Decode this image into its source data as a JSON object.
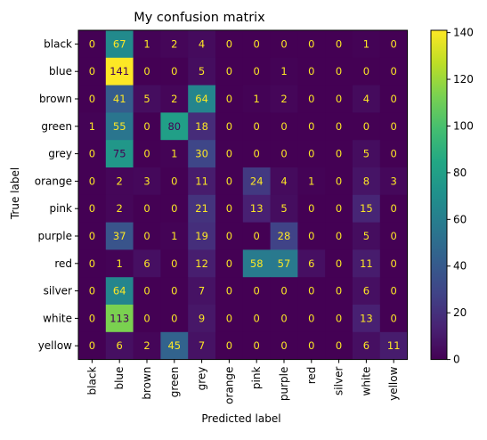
{
  "chart_data": {
    "type": "heatmap",
    "title": "My confusion matrix",
    "xlabel": "Predicted label",
    "ylabel": "True label",
    "labels": [
      "black",
      "blue",
      "brown",
      "green",
      "grey",
      "orange",
      "pink",
      "purple",
      "red",
      "silver",
      "white",
      "yellow"
    ],
    "matrix": [
      [
        0,
        67,
        1,
        2,
        4,
        0,
        0,
        0,
        0,
        0,
        1,
        0
      ],
      [
        0,
        141,
        0,
        0,
        5,
        0,
        0,
        1,
        0,
        0,
        0,
        0
      ],
      [
        0,
        41,
        5,
        2,
        64,
        0,
        1,
        2,
        0,
        0,
        4,
        0
      ],
      [
        1,
        55,
        0,
        80,
        18,
        0,
        0,
        0,
        0,
        0,
        0,
        0
      ],
      [
        0,
        75,
        0,
        1,
        30,
        0,
        0,
        0,
        0,
        0,
        5,
        0
      ],
      [
        0,
        2,
        3,
        0,
        11,
        0,
        24,
        4,
        1,
        0,
        8,
        3
      ],
      [
        0,
        2,
        0,
        0,
        21,
        0,
        13,
        5,
        0,
        0,
        15,
        0
      ],
      [
        0,
        37,
        0,
        1,
        19,
        0,
        0,
        28,
        0,
        0,
        5,
        0
      ],
      [
        0,
        1,
        6,
        0,
        12,
        0,
        58,
        57,
        6,
        0,
        11,
        0
      ],
      [
        0,
        64,
        0,
        0,
        7,
        0,
        0,
        0,
        0,
        0,
        6,
        0
      ],
      [
        0,
        113,
        0,
        0,
        9,
        0,
        0,
        0,
        0,
        0,
        13,
        0
      ],
      [
        0,
        6,
        2,
        45,
        7,
        0,
        0,
        0,
        0,
        0,
        6,
        11
      ]
    ],
    "colormap": "viridis",
    "vmin": 0,
    "vmax": 141,
    "colorbar_ticks": [
      0,
      20,
      40,
      60,
      80,
      100,
      120,
      140
    ],
    "grid": false
  }
}
